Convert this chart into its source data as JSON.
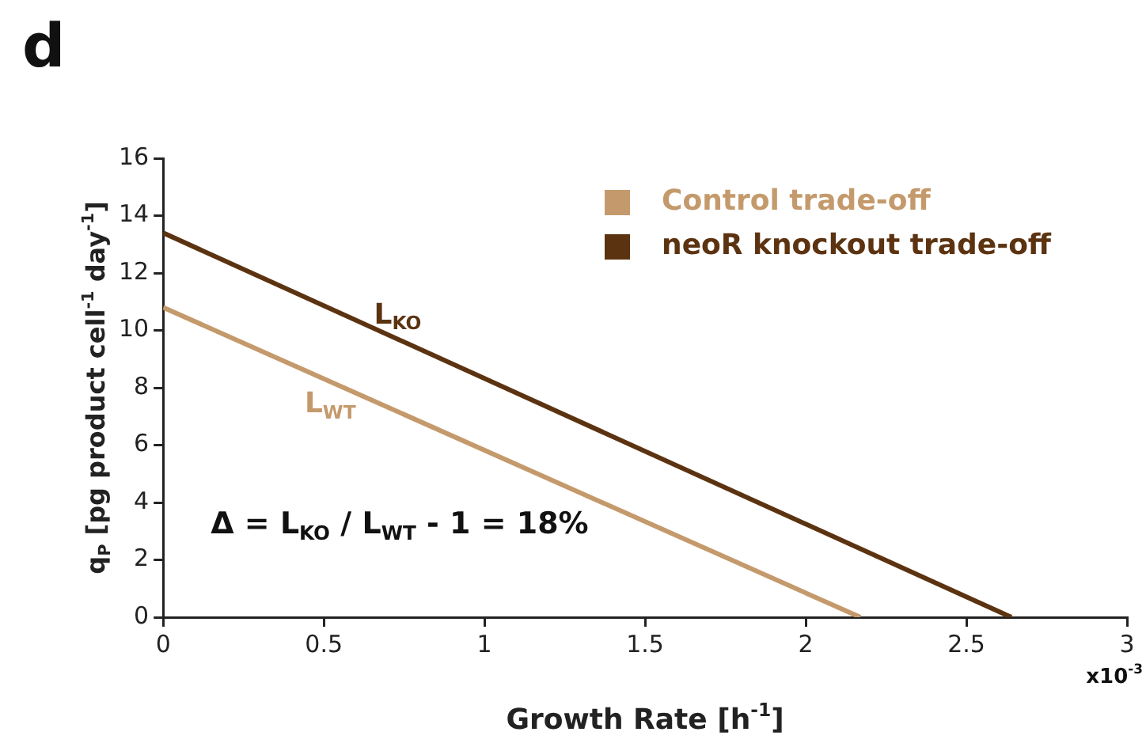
{
  "chart_data": {
    "type": "line",
    "title": "d",
    "xlabel": "Growth Rate [h$^{-1}$]",
    "ylabel": "q$_{P}$ [pg product cell$^{-1}$ day$^{-1}$]",
    "series": [
      {
        "name": "Control trade-off",
        "color": "#c49a6c",
        "x": [
          0,
          2.17
        ],
        "values": [
          10.8,
          0
        ]
      },
      {
        "name": "neoR knockout trade-off",
        "color": "#5c3311",
        "x": [
          0,
          2.64
        ],
        "values": [
          13.4,
          0
        ]
      }
    ],
    "xlim": [
      0,
      3
    ],
    "xticks": [
      0,
      0.5,
      1,
      1.5,
      2,
      2.5,
      3
    ],
    "ylim": [
      0,
      16
    ],
    "yticks": [
      0,
      2,
      4,
      6,
      8,
      10,
      12,
      14,
      16
    ],
    "grid": false,
    "legend": "top right",
    "marker": "none",
    "line_style": "solid",
    "annotations": [
      "L$_{KO}$",
      "L$_{WT}$",
      "Δ = L$_{KO}$ / L$_{WT}$ - 1 = 18%",
      "x10$^{-3}$"
    ]
  }
}
